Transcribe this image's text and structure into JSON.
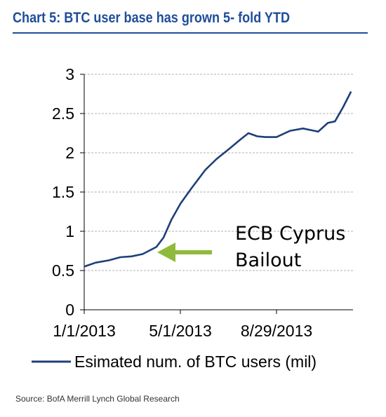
{
  "title": "Chart 5: BTC user base has grown 5- fold YTD",
  "source": "Source:  BofA Merrill Lynch Global Research",
  "colors": {
    "line": "#1f3f7a",
    "arrow": "#8fba3c",
    "title": "#1f4e99",
    "grid": "#b0b0b0"
  },
  "annotation": {
    "line1": "ECB Cyprus",
    "line2": "Bailout"
  },
  "chart_data": {
    "type": "line",
    "title": "Chart 5: BTC user base has grown 5- fold YTD",
    "xlabel": "",
    "ylabel": "",
    "ylim": [
      0,
      3
    ],
    "y_ticks": [
      "0",
      "0.5",
      "1",
      "1.5",
      "2",
      "2.5",
      "3"
    ],
    "x_ticks": [
      "1/1/2013",
      "5/1/2013",
      "8/29/2013"
    ],
    "grid": "horizontal dashed",
    "legend": "bottom",
    "series": [
      {
        "name": "Esimated num. of BTC users (mil)",
        "x": [
          "2013-01-01",
          "2013-01-15",
          "2013-02-01",
          "2013-02-15",
          "2013-03-01",
          "2013-03-15",
          "2013-04-01",
          "2013-04-10",
          "2013-04-20",
          "2013-05-01",
          "2013-05-15",
          "2013-06-01",
          "2013-06-15",
          "2013-07-01",
          "2013-07-15",
          "2013-07-25",
          "2013-08-05",
          "2013-08-15",
          "2013-08-29",
          "2013-09-15",
          "2013-10-01",
          "2013-10-15",
          "2013-10-20",
          "2013-11-01",
          "2013-11-10",
          "2013-11-20",
          "2013-11-30"
        ],
        "values": [
          0.55,
          0.6,
          0.63,
          0.67,
          0.68,
          0.71,
          0.8,
          0.92,
          1.15,
          1.35,
          1.55,
          1.78,
          1.92,
          2.05,
          2.17,
          2.25,
          2.21,
          2.2,
          2.2,
          2.28,
          2.31,
          2.28,
          2.27,
          2.38,
          2.4,
          2.58,
          2.78
        ]
      }
    ]
  }
}
